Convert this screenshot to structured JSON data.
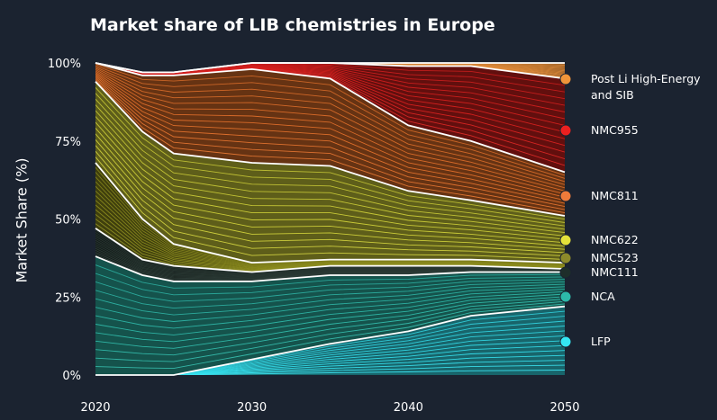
{
  "chart_data": {
    "type": "area",
    "title": "Market share of LIB chemistries in Europe",
    "xlabel": "",
    "ylabel": "Market Share (%)",
    "stacked": true,
    "xlim": [
      2020,
      2050
    ],
    "ylim": [
      0,
      100
    ],
    "x_ticks": [
      2020,
      2030,
      2040,
      2050
    ],
    "y_ticks": [
      {
        "value": 0,
        "label": "0%"
      },
      {
        "value": 25,
        "label": "25%"
      },
      {
        "value": 50,
        "label": "50%"
      },
      {
        "value": 75,
        "label": "75%"
      },
      {
        "value": 100,
        "label": "100%"
      }
    ],
    "legend_position": "right",
    "x": [
      2020,
      2023,
      2025,
      2030,
      2035,
      2040,
      2044,
      2050
    ],
    "series": [
      {
        "name": "LFP",
        "color": "#35e0ee",
        "values": [
          0,
          0,
          0,
          5,
          10,
          14,
          19,
          22
        ]
      },
      {
        "name": "NCA",
        "color": "#2fb9a9",
        "values": [
          38,
          32,
          30,
          25,
          22,
          18,
          14,
          11
        ]
      },
      {
        "name": "NMC111",
        "color": "#2a3a35",
        "values": [
          9,
          5,
          5,
          3,
          3,
          3,
          2,
          1
        ]
      },
      {
        "name": "NMC523",
        "color": "#8c8c1e",
        "values": [
          21,
          13,
          7,
          3,
          2,
          2,
          2,
          2
        ]
      },
      {
        "name": "NMC622",
        "color": "#d1d23a",
        "values": [
          26,
          28,
          29,
          32,
          30,
          22,
          19,
          15
        ]
      },
      {
        "name": "NMC811",
        "color": "#e3712b",
        "values": [
          6,
          18,
          25,
          30,
          28,
          21,
          19,
          14
        ]
      },
      {
        "name": "NMC955",
        "color": "#d9211f",
        "values": [
          0,
          1,
          1,
          2,
          5,
          19,
          24,
          30
        ]
      },
      {
        "name": "Post Li High-Energy and SIB",
        "color": "#e08b3a",
        "values": [
          0,
          0,
          0,
          0,
          0,
          1,
          1,
          5
        ]
      }
    ],
    "legend": [
      {
        "label_lines": [
          "Post Li High-Energy",
          "and SIB"
        ],
        "color": "#f0953a"
      },
      {
        "label_lines": [
          "NMC955"
        ],
        "color": "#ec2020"
      },
      {
        "label_lines": [
          "NMC811"
        ],
        "color": "#ee7a3a"
      },
      {
        "label_lines": [
          "NMC622"
        ],
        "color": "#e4e23a"
      },
      {
        "label_lines": [
          "NMC523"
        ],
        "color": "#8c8a2a"
      },
      {
        "label_lines": [
          "NMC111"
        ],
        "color": "#1e2e2a"
      },
      {
        "label_lines": [
          "NCA"
        ],
        "color": "#2db9a9"
      },
      {
        "label_lines": [
          "LFP"
        ],
        "color": "#35e6f2"
      }
    ]
  }
}
